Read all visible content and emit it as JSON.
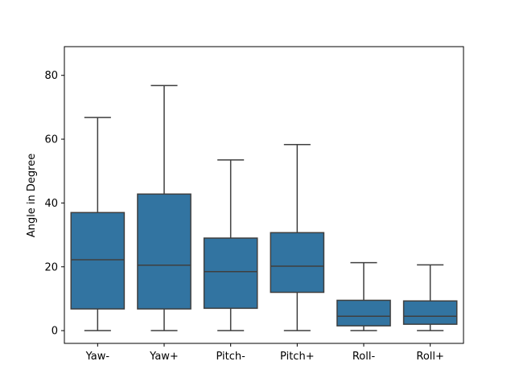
{
  "chart_data": {
    "type": "box",
    "ylabel": "Angle in Degree",
    "xlabel": "",
    "ylim": [
      -4,
      89
    ],
    "yticks": [
      0,
      20,
      40,
      60,
      80
    ],
    "categories": [
      "Yaw-",
      "Yaw+",
      "Pitch-",
      "Pitch+",
      "Roll-",
      "Roll+"
    ],
    "boxes": [
      {
        "category": "Yaw-",
        "min": 0,
        "q1": 6.8,
        "median": 22.2,
        "q3": 37.0,
        "max": 66.8
      },
      {
        "category": "Yaw+",
        "min": 0,
        "q1": 6.8,
        "median": 20.5,
        "q3": 42.8,
        "max": 76.8
      },
      {
        "category": "Pitch-",
        "min": 0,
        "q1": 7.0,
        "median": 18.5,
        "q3": 29.0,
        "max": 53.5
      },
      {
        "category": "Pitch+",
        "min": 0,
        "q1": 12.0,
        "median": 20.2,
        "q3": 30.7,
        "max": 58.3
      },
      {
        "category": "Roll-",
        "min": 0,
        "q1": 1.5,
        "median": 4.5,
        "q3": 9.5,
        "max": 21.3
      },
      {
        "category": "Roll+",
        "min": 0,
        "q1": 2.0,
        "median": 4.5,
        "q3": 9.3,
        "max": 20.6
      }
    ],
    "colors": {
      "box_fill": "#3274a1",
      "line": "#3f3f3f"
    },
    "grid": false,
    "legend": "none"
  }
}
